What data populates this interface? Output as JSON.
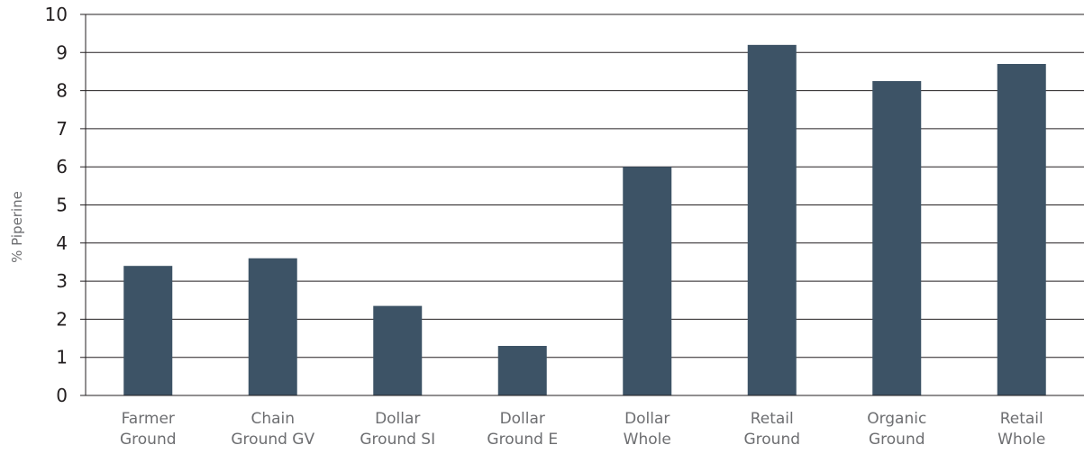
{
  "chart_data": {
    "type": "bar",
    "categories": [
      [
        "Farmer",
        "Ground"
      ],
      [
        "Chain",
        "Ground GV"
      ],
      [
        "Dollar",
        "Ground SI"
      ],
      [
        "Dollar",
        "Ground E"
      ],
      [
        "Dollar",
        "Whole"
      ],
      [
        "Retail",
        "Ground"
      ],
      [
        "Organic",
        "Ground"
      ],
      [
        "Retail",
        "Whole"
      ]
    ],
    "values": [
      3.4,
      3.6,
      2.35,
      1.3,
      6.0,
      9.2,
      8.25,
      8.7
    ],
    "title": "",
    "xlabel": "",
    "ylabel": "% Piperine",
    "ylim": [
      0,
      10
    ],
    "yticks": [
      0,
      1,
      2,
      3,
      4,
      5,
      6,
      7,
      8,
      9,
      10
    ],
    "grid": true,
    "bar_color": "#3d5366"
  }
}
